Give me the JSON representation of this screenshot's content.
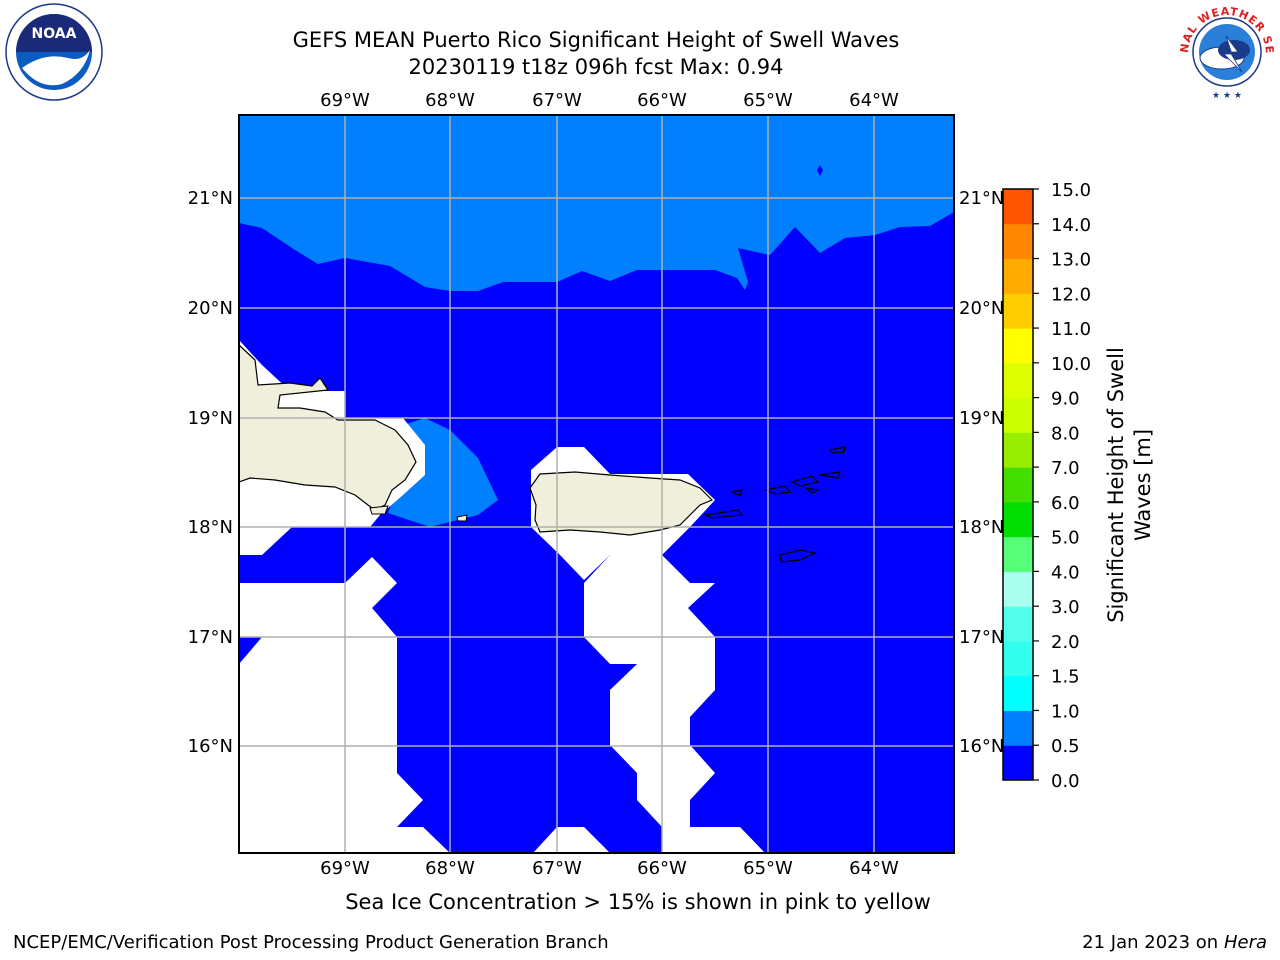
{
  "title": {
    "line1": "GEFS MEAN Puerto Rico Significant Height of Swell Waves",
    "line2": "20230119 t18z 096h fcst   Max: 0.94"
  },
  "map": {
    "lon_ticks": [
      "69°W",
      "68°W",
      "67°W",
      "66°W",
      "65°W",
      "64°W"
    ],
    "lat_ticks": [
      "21°N",
      "20°N",
      "19°N",
      "18°N",
      "17°N",
      "16°N"
    ],
    "colors": {
      "sea_low": "#0000ff",
      "sea_mid": "#0080ff",
      "land": "#efefdc",
      "missing": "#ffffff",
      "grid": "#b0b0b0"
    }
  },
  "colorbar": {
    "label_line1": "Significant Height of Swell",
    "label_line2": "Waves [m]",
    "levels": [
      "0.0",
      "0.5",
      "1.0",
      "1.5",
      "2.0",
      "3.0",
      "4.0",
      "5.0",
      "6.0",
      "7.0",
      "8.0",
      "9.0",
      "10.0",
      "11.0",
      "12.0",
      "13.0",
      "14.0",
      "15.0"
    ],
    "colors": [
      "#0000ff",
      "#0080ff",
      "#00ffff",
      "#33ffee",
      "#55ffee",
      "#aaffee",
      "#55ff77",
      "#00dd00",
      "#44dd00",
      "#99ee00",
      "#ccff00",
      "#ddff00",
      "#ffff00",
      "#ffcc00",
      "#ffaa00",
      "#ff8800",
      "#ff5500",
      "#ff2200",
      "#ff0000"
    ]
  },
  "ice_note": "Sea Ice Concentration > 15% is shown in pink to yellow",
  "footer": {
    "left": "NCEP/EMC/Verification Post Processing Product Generation Branch",
    "right_date": "21 Jan 2023 on ",
    "right_host": "Hera"
  },
  "logos": {
    "noaa_text": "NOAA",
    "nws_text": "NATIONAL WEATHER SERVICE"
  }
}
